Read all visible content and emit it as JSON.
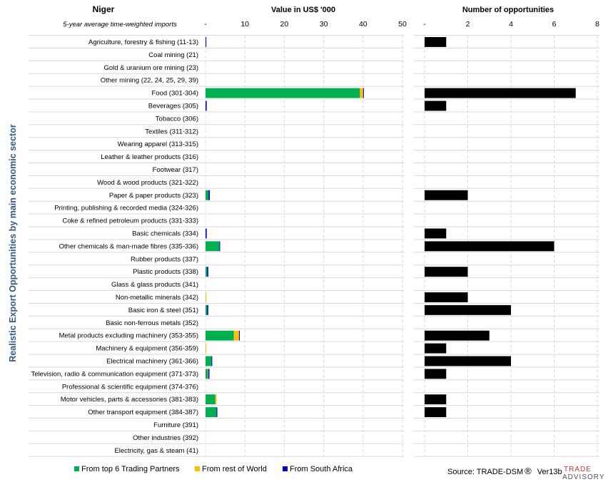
{
  "chart_data": {
    "type": "bar",
    "title": "Niger",
    "subtitle": "5-year average time-weighted imports",
    "ylabel": "Realistic Export Opportunities by main economic sector",
    "categories": [
      "Agriculture, forestry & fishing (11-13)",
      "Coal mining (21)",
      "Gold & uranium ore mining (23)",
      "Other mining (22, 24, 25, 29, 39)",
      "Food (301-304)",
      "Beverages (305)",
      "Tobacco (306)",
      "Textiles (311-312)",
      "Wearing apparel (313-315)",
      "Leather & leather products (316)",
      "Footwear (317)",
      "Wood & wood products (321-322)",
      "Paper & paper products (323)",
      "Printing, publishing & recorded media (324-326)",
      "Coke & refined petroleum products (331-333)",
      "Basic chemicals (334)",
      "Other chemicals & man-made fibres (335-336)",
      "Rubber products (337)",
      "Plastic products (338)",
      "Glass & glass products (341)",
      "Non-metallic minerals (342)",
      "Basic iron & steel (351)",
      "Basic non-ferrous metals (352)",
      "Metal products excluding machinery (353-355)",
      "Machinery & equipment (356-359)",
      "Electrical machinery (361-366)",
      "Television, radio & communication equipment (371-373)",
      "Professional & scientific equipment (374-376)",
      "Motor vehicles, parts & accessories (381-383)",
      "Other transport equipment (384-387)",
      "Furniture (391)",
      "Other industries (392)",
      "Electricity, gas & steam (41)"
    ],
    "panels": [
      {
        "title": "Value in US$ '000",
        "type": "stacked-bar-horizontal",
        "xlim": [
          0,
          50
        ],
        "ticks": [
          "-",
          "10",
          "20",
          "30",
          "40",
          "50"
        ],
        "series": [
          {
            "name": "From top 6 Trading Partners",
            "color": "#00b050",
            "values": [
              0,
              0,
              0,
              0,
              39.2,
              0,
              0,
              0,
              0,
              0,
              0,
              0,
              0.8,
              0,
              0,
              0,
              3.5,
              0,
              0.4,
              0,
              0,
              0.4,
              0,
              7.2,
              0,
              1.5,
              0.6,
              0,
              2.5,
              2.8,
              0,
              0,
              0
            ]
          },
          {
            "name": "From rest of World",
            "color": "#ffc000",
            "values": [
              0,
              0,
              0,
              0,
              0.8,
              0,
              0,
              0,
              0,
              0,
              0,
              0,
              0,
              0,
              0,
              0,
              0,
              0,
              0,
              0,
              0.2,
              0,
              0,
              1.3,
              0.2,
              0,
              0.1,
              0,
              0.3,
              0,
              0,
              0,
              0
            ]
          },
          {
            "name": "From South Africa",
            "color": "#0000cc",
            "values": [
              0.2,
              0,
              0,
              0,
              0.2,
              0.3,
              0,
              0,
              0,
              0,
              0,
              0,
              0.3,
              0,
              0,
              0.3,
              0.2,
              0,
              0.3,
              0,
              0,
              0.3,
              0,
              0.2,
              0,
              0.2,
              0.3,
              0,
              0,
              0.2,
              0,
              0,
              0
            ]
          }
        ]
      },
      {
        "title": "Number of opportunities",
        "type": "bar-horizontal",
        "xlim": [
          0,
          8
        ],
        "ticks": [
          "-",
          "2",
          "4",
          "6",
          "8"
        ],
        "color": "#000000",
        "values": [
          1,
          0,
          0,
          0,
          7,
          1,
          0,
          0,
          0,
          0,
          0,
          0,
          2,
          0,
          0,
          1,
          6,
          0,
          2,
          0,
          2,
          4,
          0,
          3,
          1,
          4,
          1,
          0,
          1,
          1,
          0,
          0,
          0
        ]
      }
    ],
    "legend": {
      "position": "bottom-left",
      "items": [
        {
          "label": "From top 6 Trading Partners",
          "color": "#00b050"
        },
        {
          "label": "From rest of World",
          "color": "#ffc000"
        },
        {
          "label": "From South Africa",
          "color": "#0000cc"
        }
      ]
    },
    "grid": true
  },
  "footer": {
    "source_label": "Source: TRADE-DSM",
    "registered_mark": "®",
    "version": "Ver13b",
    "brand_top": "TRADE",
    "brand_bottom": "ADVISORY"
  },
  "colors": {
    "ylabel": "#2e5a88",
    "grid": "#d9d9d9",
    "opportunities_bar": "#000000"
  }
}
